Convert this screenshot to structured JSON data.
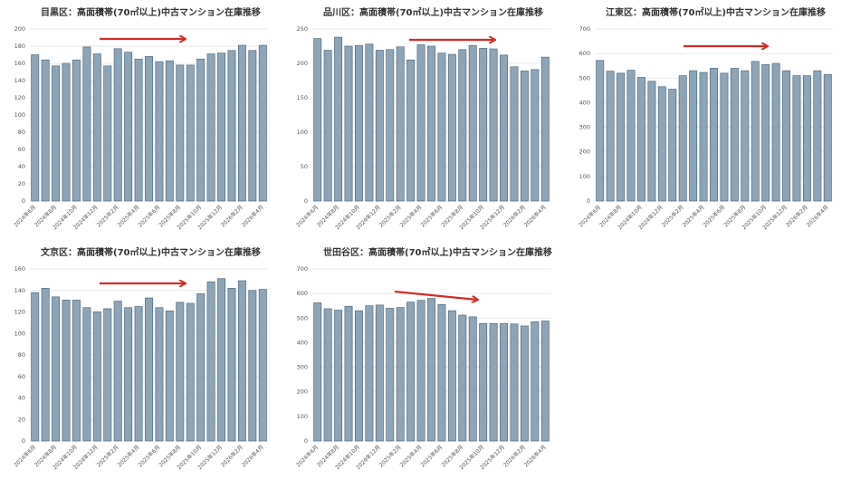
{
  "chart_data": [
    {
      "type": "bar",
      "title": "目黒区：高面積帯(70㎡以上)中古マンション在庫推移",
      "categories": [
        "2024年6月",
        null,
        "2024年8月",
        null,
        "2024年10月",
        null,
        "2024年12月",
        null,
        "2025年2月",
        null,
        "2025年4月",
        null,
        "2025年6月",
        null,
        "2025年8月",
        null,
        "2025年10月",
        null,
        "2025年12月",
        null,
        "2026年2月",
        null,
        "2026年4月"
      ],
      "values": [
        170,
        164,
        157,
        160,
        164,
        179,
        171,
        157,
        177,
        173,
        165,
        168,
        162,
        163,
        158,
        158,
        165,
        171,
        172,
        175,
        181,
        175,
        181
      ],
      "color": "#8ea5b8",
      "ylim": [
        0,
        200
      ],
      "yticks": [
        0,
        20,
        40,
        60,
        80,
        100,
        120,
        140,
        160,
        180,
        200
      ],
      "grid": true
    },
    {
      "type": "bar",
      "title": "品川区：高面積帯(70㎡以上)中古マンション在庫推移",
      "categories": [
        "2024年6月",
        null,
        "2024年8月",
        null,
        "2024年10月",
        null,
        "2024年12月",
        null,
        "2025年2月",
        null,
        "2025年4月",
        null,
        "2025年6月",
        null,
        "2025年8月",
        null,
        "2025年10月",
        null,
        "2025年12月",
        null,
        "2026年2月",
        null,
        "2026年4月"
      ],
      "values": [
        236,
        219,
        238,
        225,
        226,
        228,
        219,
        220,
        224,
        205,
        227,
        225,
        215,
        213,
        220,
        226,
        222,
        221,
        212,
        195,
        189,
        191,
        209
      ],
      "color": "#8ea5b8",
      "ylim": [
        0,
        250
      ],
      "yticks": [
        0,
        50,
        100,
        150,
        200,
        250
      ],
      "grid": true
    },
    {
      "type": "bar",
      "title": "江東区：高面積帯(70㎡以上)中古マンション在庫推移",
      "categories": [
        "2024年6月",
        null,
        "2024年8月",
        null,
        "2024年10月",
        null,
        "2024年12月",
        null,
        "2025年2月",
        null,
        "2025年4月",
        null,
        "2025年6月",
        null,
        "2025年8月",
        null,
        "2025年10月",
        null,
        "2025年12月",
        null,
        "2026年2月",
        null,
        "2026年4月"
      ],
      "values": [
        572,
        528,
        520,
        532,
        503,
        487,
        465,
        455,
        510,
        530,
        523,
        540,
        520,
        540,
        530,
        568,
        555,
        560,
        530,
        510,
        510,
        530,
        515
      ],
      "color": "#8ea5b8",
      "ylim": [
        0,
        700
      ],
      "yticks": [
        0,
        100,
        200,
        300,
        400,
        500,
        600,
        700
      ],
      "grid": true
    },
    {
      "type": "bar",
      "title": "文京区：高面積帯(70㎡以上)中古マンション在庫推移",
      "categories": [
        "2024年6月",
        null,
        "2024年8月",
        null,
        "2024年10月",
        null,
        "2024年12月",
        null,
        "2025年2月",
        null,
        "2025年4月",
        null,
        "2025年6月",
        null,
        "2025年8月",
        null,
        "2025年10月",
        null,
        "2025年12月",
        null,
        "2026年2月",
        null,
        "2026年4月"
      ],
      "values": [
        138,
        142,
        134,
        131,
        131,
        124,
        120,
        123,
        130,
        124,
        125,
        133,
        124,
        121,
        129,
        128,
        137,
        148,
        151,
        142,
        149,
        140,
        141
      ],
      "color": "#8ea5b8",
      "ylim": [
        0,
        160
      ],
      "yticks": [
        0,
        20,
        40,
        60,
        80,
        100,
        120,
        140,
        160
      ],
      "grid": true
    },
    {
      "type": "bar",
      "title": "世田谷区：高面積帯(70㎡以上)中古マンション在庫推移",
      "categories": [
        "2024年6月",
        null,
        "2024年8月",
        null,
        "2024年10月",
        null,
        "2024年12月",
        null,
        "2025年2月",
        null,
        "2025年4月",
        null,
        "2025年6月",
        null,
        "2025年8月",
        null,
        "2025年10月",
        null,
        "2025年12月",
        null,
        "2026年2月",
        null,
        "2026年4月"
      ],
      "values": [
        562,
        538,
        532,
        548,
        530,
        550,
        553,
        540,
        543,
        565,
        572,
        580,
        555,
        530,
        512,
        505,
        478,
        478,
        478,
        476,
        468,
        485,
        488
      ],
      "color": "#8ea5b8",
      "ylim": [
        0,
        700
      ],
      "yticks": [
        0,
        100,
        200,
        300,
        400,
        500,
        600,
        700
      ],
      "grid": true
    }
  ]
}
